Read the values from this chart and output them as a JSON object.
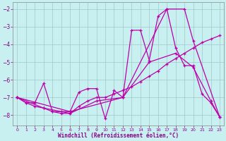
{
  "xlabel": "Windchill (Refroidissement éolien,°C)",
  "background_color": "#c8f0f0",
  "grid_color": "#a0c8c8",
  "line_color": "#bb00aa",
  "xlim": [
    -0.5,
    23.5
  ],
  "ylim": [
    -8.6,
    -1.6
  ],
  "xticks": [
    0,
    1,
    2,
    3,
    4,
    5,
    6,
    7,
    8,
    9,
    10,
    11,
    12,
    13,
    14,
    15,
    16,
    17,
    18,
    19,
    20,
    21,
    22,
    23
  ],
  "yticks": [
    -8,
    -7,
    -6,
    -5,
    -4,
    -3,
    -2
  ],
  "font_color": "#880088",
  "lines": [
    {
      "x": [
        0,
        1,
        2,
        3,
        4,
        5,
        6,
        7,
        8,
        9,
        10,
        11,
        12,
        13,
        14,
        15,
        16,
        17,
        18,
        19,
        20,
        21,
        22,
        23
      ],
      "y": [
        -7.0,
        -7.3,
        -7.3,
        -6.2,
        -7.8,
        -7.8,
        -7.8,
        -6.7,
        -6.5,
        -6.5,
        -8.2,
        -6.6,
        -7.0,
        -3.2,
        -3.2,
        -4.9,
        -2.4,
        -2.0,
        -4.2,
        -5.2,
        -5.2,
        -6.8,
        -7.3,
        -8.1
      ]
    },
    {
      "x": [
        0,
        1,
        2,
        3,
        4,
        5,
        6,
        7,
        8,
        9,
        10,
        11,
        12,
        13,
        14,
        15,
        16,
        17,
        18,
        19,
        20,
        21,
        22,
        23
      ],
      "y": [
        -7.0,
        -7.3,
        -7.5,
        -7.6,
        -7.8,
        -7.9,
        -7.9,
        -7.5,
        -7.2,
        -7.0,
        -7.0,
        -6.8,
        -6.6,
        -6.4,
        -6.1,
        -5.8,
        -5.5,
        -5.1,
        -4.8,
        -4.5,
        -4.2,
        -3.9,
        -3.7,
        -3.5
      ]
    },
    {
      "x": [
        0,
        3,
        6,
        9,
        12,
        15,
        18,
        20,
        22,
        23
      ],
      "y": [
        -7.0,
        -7.6,
        -7.9,
        -7.2,
        -7.0,
        -5.0,
        -4.5,
        -5.3,
        -7.2,
        -8.1
      ]
    },
    {
      "x": [
        0,
        6,
        12,
        17,
        19,
        20,
        23
      ],
      "y": [
        -7.0,
        -7.8,
        -7.0,
        -2.0,
        -2.0,
        -3.8,
        -8.1
      ]
    }
  ]
}
